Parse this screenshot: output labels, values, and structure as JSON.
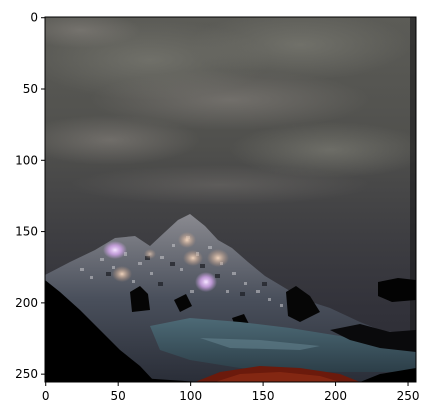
{
  "figure": {
    "type": "image-with-axes",
    "x_axis": {
      "range": [
        0,
        256
      ],
      "ticks": [
        "0",
        "50",
        "100",
        "150",
        "200",
        "250"
      ]
    },
    "y_axis": {
      "range": [
        0,
        256
      ],
      "inverted": true,
      "ticks": [
        "0",
        "50",
        "100",
        "150",
        "200",
        "250"
      ]
    }
  },
  "image": {
    "subject": "mountain-landscape",
    "colors": {
      "sky_top": "#5a5a55",
      "sky_mid": "#4a4a48",
      "sky_low": "#36363c",
      "mountain_base": "#3a3f4a",
      "highlight": "#e6c9f2",
      "water": "#3e5a66",
      "foreground": "#000000",
      "ground_red": "#7a2010"
    }
  }
}
